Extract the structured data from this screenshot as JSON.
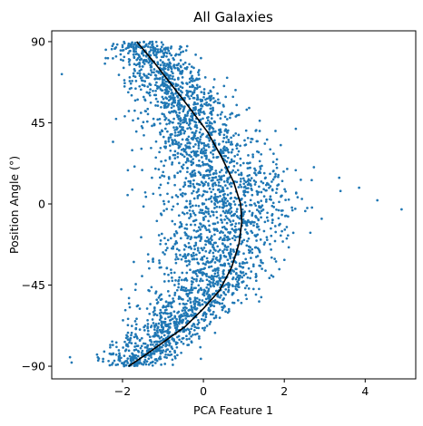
{
  "chart_data": {
    "type": "scatter",
    "title": "All Galaxies",
    "xlabel": "PCA Feature 1",
    "ylabel": "Position Angle (°)",
    "xlim": [
      -3.75,
      5.25
    ],
    "ylim": [
      -97,
      96
    ],
    "x_ticks": [
      -2,
      0,
      2,
      4
    ],
    "y_ticks": [
      90,
      45,
      0,
      -45,
      -90
    ],
    "y_tick_labels": [
      "90",
      "45",
      "0",
      "−45",
      "−90"
    ],
    "x_tick_labels": [
      "−2",
      "0",
      "2",
      "4"
    ],
    "grid": false,
    "scatter_color": "#1f77b4",
    "fit_color": "#000000",
    "scatter_point_count": 3000,
    "scatter_ridge": {
      "description_points": [
        {
          "y": 90,
          "x": -1.55
        },
        {
          "y": 45,
          "x": -0.2
        },
        {
          "y": 0,
          "x": 0.55
        },
        {
          "y": -45,
          "x": 0.15
        },
        {
          "y": -90,
          "x": -1.75
        }
      ],
      "outliers": [
        {
          "x": 4.9,
          "y": -3
        },
        {
          "x": 4.3,
          "y": 2
        },
        {
          "x": 3.85,
          "y": 9
        },
        {
          "x": -3.5,
          "y": 72
        },
        {
          "x": -3.3,
          "y": -85
        }
      ]
    },
    "series": [
      {
        "type": "line",
        "x": [
          -1.65,
          -1.2,
          -0.75,
          -0.3,
          0.1,
          0.45,
          0.75,
          0.92,
          0.95,
          0.88,
          0.7,
          0.4,
          0.0,
          -0.45,
          -0.95,
          -1.45,
          -1.85
        ],
        "y": [
          90,
          78,
          65,
          52,
          40,
          26,
          12,
          0,
          -10,
          -22,
          -35,
          -48,
          -58,
          -68,
          -76,
          -84,
          -90
        ]
      }
    ]
  }
}
